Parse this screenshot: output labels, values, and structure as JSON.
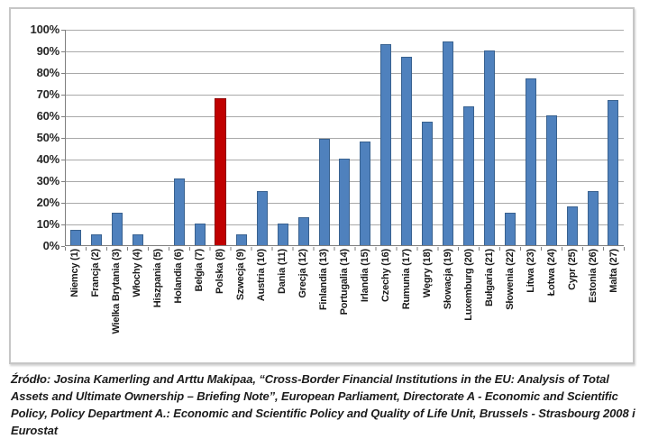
{
  "chart_data": {
    "type": "bar",
    "categories": [
      "Niemcy (1)",
      "Francja (2)",
      "Wielka Brytania (3)",
      "Włochy (4)",
      "Hiszpania (5)",
      "Holandia (6)",
      "Belgia (7)",
      "Polska (8)",
      "Szwecja (9)",
      "Austria (10)",
      "Dania (11)",
      "Grecja (12)",
      "Finlandia (13)",
      "Portugalia (14)",
      "Irlandia (15)",
      "Czechy (16)",
      "Rumunia (17)",
      "Węgry (18)",
      "Słowacja (19)",
      "Luxemburg (20)",
      "Bułgaria (21)",
      "Słowenia (22)",
      "Litwa (23)",
      "Łotwa (24)",
      "Cypr (25)",
      "Estonia (26)",
      "Malta (27)"
    ],
    "values": [
      7,
      5,
      15,
      5,
      0,
      31,
      10,
      68,
      5,
      25,
      10,
      13,
      49,
      40,
      48,
      93,
      87,
      57,
      94,
      64,
      90,
      15,
      77,
      60,
      18,
      25,
      67
    ],
    "unit": "%",
    "highlight_index": 7,
    "highlight_label": "Polska (8)",
    "title": "",
    "xlabel": "",
    "ylabel": "",
    "ylim": [
      0,
      100
    ],
    "y_tick_step": 10,
    "y_tick_labels": [
      "100%",
      "90%",
      "80%",
      "70%",
      "60%",
      "50%",
      "40%",
      "30%",
      "20%",
      "10%",
      "0%"
    ],
    "grid": true,
    "legend": "none",
    "colors": {
      "bar": "#4f81bd",
      "bar_border": "#38618f",
      "highlight": "#c00000",
      "highlight_border": "#8e0000",
      "gridline": "#a9a9a9",
      "axis": "#7f7f7f"
    }
  },
  "caption": "Źródło: Josina Kamerling and Arttu Makipaa, “Cross-Border Financial Institutions in the EU: Analysis of Total Assets and Ultimate Ownership – Briefing Note”, European Parliament, Directorate A - Economic and Scientific Policy, Policy Department A.: Economic and Scientific Policy and Quality of Life Unit, Brussels - Strasbourg 2008 i Eurostat"
}
